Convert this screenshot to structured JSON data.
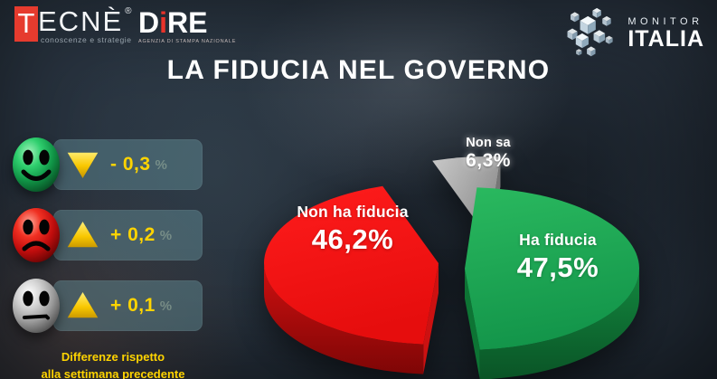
{
  "brand": {
    "tecne": {
      "t": "T",
      "rest": "ECNÈ",
      "reg": "®",
      "tagline": "conoscenze e strategie"
    },
    "dire": {
      "part1": "D",
      "part2": "i",
      "part3": "RE",
      "tagline": "AGENZIA DI STAMPA NAZIONALE"
    },
    "monitor_italia": {
      "line1": "MONITOR",
      "line2": "ITALIA"
    }
  },
  "title": "LA FIDUCIA NEL GOVERNO",
  "legend": {
    "rows": [
      {
        "face": "smiley-green",
        "trend": "down",
        "value": "- 0,3",
        "unit": "%"
      },
      {
        "face": "sad-red",
        "trend": "up",
        "value": "+ 0,2",
        "unit": "%"
      },
      {
        "face": "neutral-gray",
        "trend": "up",
        "value": "+ 0,1",
        "unit": "%"
      }
    ],
    "footnote": [
      "Differenze rispetto",
      "alla settimana precedente"
    ]
  },
  "chart_data": {
    "type": "pie",
    "style": "3d-exploded",
    "title": "LA FIDUCIA NEL GOVERNO",
    "unit": "%",
    "slices": [
      {
        "label": "Ha fiducia",
        "value": 47.5,
        "display": "47,5%",
        "color": "#1ca351",
        "delta": -0.3
      },
      {
        "label": "Non ha fiducia",
        "value": 46.2,
        "display": "46,2%",
        "color": "#f31111",
        "delta": 0.2
      },
      {
        "label": "Non sa",
        "value": 6.3,
        "display": "6,3%",
        "color": "#a2a2a2",
        "delta": 0.1
      }
    ]
  },
  "colors": {
    "accent_yellow": "#ffd400",
    "background": "#27313d",
    "pill_teal": "rgba(104,151,160,0.43)"
  }
}
